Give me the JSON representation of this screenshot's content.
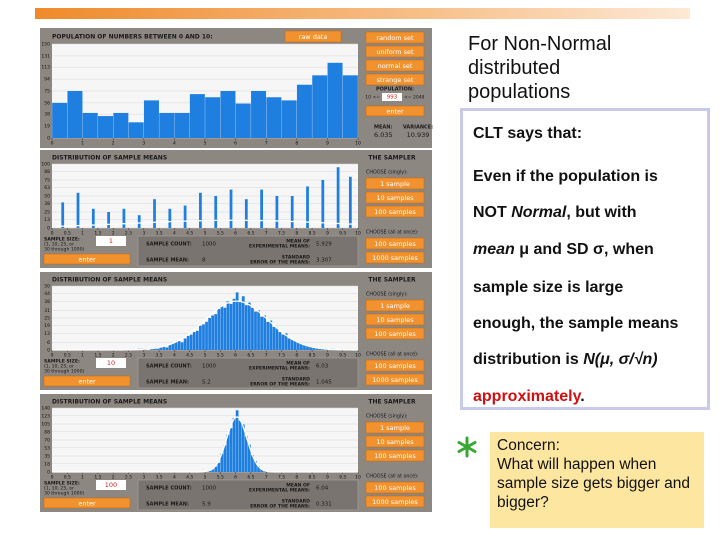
{
  "slide": {
    "title": "For Non-Normal distributed populations",
    "clt": {
      "lines": [
        [
          "CLT says that:"
        ],
        [
          "Even if the population is"
        ],
        [
          "NOT ",
          "Normal",
          ", but with"
        ],
        [
          "mean",
          " μ",
          " and SD ",
          "σ",
          ", when"
        ],
        [
          "sample size is large"
        ],
        [
          "enough, the sample means"
        ],
        [
          "distribution is ",
          "N(μ, σ/√n)"
        ],
        [
          "approximately",
          "."
        ]
      ]
    },
    "concern": {
      "heading": "Concern:",
      "text": "What will happen when sample size gets bigger and bigger?"
    }
  },
  "applet": {
    "population": {
      "title": "POPULATION OF NUMBERS BETWEEN 0 AND 10:",
      "raw_button": "raw data",
      "set_buttons": [
        "random set",
        "uniform set",
        "normal set",
        "strange set"
      ],
      "population_label": "POPULATION:",
      "range_low": "10 <=",
      "population": 993,
      "range_high": "<= 2048",
      "enter": "enter",
      "mean_label": "MEAN:",
      "mean": 6.035,
      "variance_label": "VARIANCE:",
      "variance": 10.939,
      "ylim": [
        0,
        150
      ],
      "yticks": [
        0,
        19,
        38,
        56,
        75,
        94,
        113,
        131,
        150
      ],
      "xlim": [
        0,
        10
      ],
      "xticks": [
        0,
        1,
        2,
        3,
        4,
        5,
        6,
        7,
        8,
        9,
        10
      ],
      "values": [
        56,
        75,
        40,
        35,
        40,
        25,
        60,
        40,
        40,
        70,
        65,
        75,
        55,
        75,
        65,
        60,
        85,
        100,
        120,
        100
      ]
    },
    "panels": [
      {
        "title": "DISTRIBUTION OF SAMPLE MEANS",
        "sampler": "THE SAMPLER",
        "choose_singly": "CHOOSE (singly):",
        "single_buttons": [
          "1 sample",
          "10 samples",
          "100 samples"
        ],
        "choose_all": "CHOOSE (all at once):",
        "all_buttons": [
          "100 samples",
          "1000 samples"
        ],
        "size_label": [
          "SAMPLE SIZE:",
          "(1, 10, 25, or",
          "30 through 1000)"
        ],
        "sample_size": 1,
        "enter": "enter",
        "count_label": "SAMPLE COUNT:",
        "sample_count": 1000,
        "mom_label": [
          "MEAN OF",
          "EXPERIMENTAL MEANS:"
        ],
        "mean_of_means": 5.929,
        "sm_label": "SAMPLE MEAN:",
        "sample_mean": 8,
        "se_label": [
          "STANDARD",
          "ERROR OF THE MEANS:"
        ],
        "standard_error": 3.307,
        "ylim": [
          0,
          100
        ],
        "yticks": [
          0,
          13,
          25,
          38,
          50,
          63,
          75,
          88,
          100
        ],
        "xlim": [
          0,
          10
        ],
        "xticks": [
          0,
          0.5,
          1,
          1.5,
          2,
          2.5,
          3,
          3.5,
          4,
          4.5,
          5,
          5.5,
          6,
          6.5,
          7,
          7.5,
          8,
          8.5,
          9,
          9.5,
          10
        ],
        "values": [
          0,
          0,
          0,
          40,
          0,
          0,
          0,
          0,
          55,
          0,
          0,
          0,
          0,
          30,
          0,
          0,
          0,
          0,
          25,
          0,
          0,
          0,
          0,
          30,
          0,
          0,
          0,
          0,
          20,
          0,
          0,
          0,
          0,
          45,
          0,
          0,
          0,
          0,
          30,
          0,
          0,
          0,
          0,
          35,
          0,
          0,
          0,
          0,
          55,
          0,
          0,
          0,
          0,
          50,
          0,
          0,
          0,
          0,
          60,
          0,
          0,
          0,
          0,
          45,
          0,
          0,
          0,
          0,
          60,
          0,
          0,
          0,
          0,
          50,
          0,
          0,
          0,
          0,
          50,
          0,
          0,
          0,
          0,
          65,
          0,
          0,
          0,
          0,
          75,
          0,
          0,
          0,
          0,
          95,
          0,
          0,
          0,
          80,
          0,
          0
        ]
      },
      {
        "title": "DISTRIBUTION OF SAMPLE MEANS",
        "sampler": "THE SAMPLER",
        "choose_singly": "CHOOSE (singly):",
        "single_buttons": [
          "1 sample",
          "10 samples",
          "100 samples"
        ],
        "choose_all": "CHOOSE (all at once):",
        "all_buttons": [
          "100 samples",
          "1000 samples"
        ],
        "size_label": [
          "SAMPLE SIZE:",
          "(1, 10, 25, or",
          "30 through 1000)"
        ],
        "sample_size": 10,
        "enter": "enter",
        "count_label": "SAMPLE COUNT:",
        "sample_count": 1000,
        "mom_label": [
          "MEAN OF",
          "EXPERIMENTAL MEANS:"
        ],
        "mean_of_means": 6.03,
        "sm_label": "SAMPLE MEAN:",
        "sample_mean": 5.2,
        "se_label": [
          "STANDARD",
          "ERROR OF THE MEANS:"
        ],
        "standard_error": 1.045,
        "ylim": [
          0,
          50
        ],
        "yticks": [
          0,
          6,
          13,
          19,
          25,
          31,
          38,
          44,
          50
        ],
        "xlim": [
          0,
          10
        ],
        "xticks": [
          0,
          0.5,
          1,
          1.5,
          2,
          2.5,
          3,
          3.5,
          4,
          4.5,
          5,
          5.5,
          6,
          6.5,
          7,
          7.5,
          8,
          8.5,
          9,
          9.5,
          10
        ],
        "values": [
          0,
          0,
          0,
          0,
          0,
          0,
          0,
          0,
          0,
          0,
          0,
          0,
          0,
          0,
          0,
          0,
          0,
          0,
          0,
          0,
          0,
          0,
          0,
          0,
          0,
          0,
          0,
          0,
          1,
          1,
          1,
          0,
          1,
          2,
          1,
          2,
          3,
          2,
          4,
          5,
          6,
          7,
          6,
          9,
          11,
          12,
          14,
          15,
          19,
          20,
          22,
          25,
          27,
          28,
          32,
          34,
          33,
          38,
          36,
          40,
          45,
          38,
          42,
          35,
          37,
          33,
          30,
          31,
          26,
          27,
          22,
          23,
          18,
          17,
          14,
          12,
          13,
          9,
          8,
          7,
          6,
          5,
          4,
          3,
          3,
          2,
          2,
          1,
          1,
          1,
          0,
          1,
          0,
          0,
          0,
          0,
          0,
          0,
          0,
          0
        ]
      },
      {
        "title": "DISTRIBUTION OF SAMPLE MEANS",
        "sampler": "THE SAMPLER",
        "choose_singly": "CHOOSE (singly):",
        "single_buttons": [
          "1 sample",
          "10 samples",
          "100 samples"
        ],
        "choose_all": "CHOOSE (all at once):",
        "all_buttons": [
          "100 samples",
          "1000 samples"
        ],
        "size_label": [
          "SAMPLE SIZE:",
          "(1, 10, 25, or",
          "30 through 1000)"
        ],
        "sample_size": 100,
        "enter": "enter",
        "count_label": "SAMPLE COUNT:",
        "sample_count": 1000,
        "mom_label": [
          "MEAN OF",
          "EXPERIMENTAL MEANS:"
        ],
        "mean_of_means": 6.04,
        "sm_label": "SAMPLE MEAN:",
        "sample_mean": 5.9,
        "se_label": [
          "STANDARD",
          "ERROR OF THE MEANS:"
        ],
        "standard_error": 0.331,
        "ylim": [
          0,
          140
        ],
        "yticks": [
          0,
          18,
          35,
          53,
          70,
          88,
          105,
          123,
          140
        ],
        "xlim": [
          0,
          10
        ],
        "xticks": [
          0,
          0.5,
          1,
          1.5,
          2,
          2.5,
          3,
          3.5,
          4,
          4.5,
          5,
          5.5,
          6,
          6.5,
          7,
          7.5,
          8,
          8.5,
          9,
          9.5,
          10
        ],
        "values": [
          0,
          0,
          0,
          0,
          0,
          0,
          0,
          0,
          0,
          0,
          0,
          0,
          0,
          0,
          0,
          0,
          0,
          0,
          0,
          0,
          0,
          0,
          0,
          0,
          0,
          0,
          0,
          0,
          0,
          0,
          0,
          0,
          0,
          0,
          0,
          0,
          0,
          0,
          0,
          0,
          0,
          0,
          0,
          0,
          0,
          0,
          0,
          0,
          0,
          1,
          2,
          3,
          6,
          12,
          20,
          40,
          58,
          82,
          96,
          118,
          135,
          112,
          104,
          78,
          60,
          37,
          24,
          13,
          6,
          3,
          2,
          1,
          0,
          0,
          0,
          0,
          0,
          0,
          0,
          0,
          0,
          0,
          0,
          0,
          0,
          0,
          0,
          0,
          0,
          0,
          0,
          0,
          0,
          0,
          0,
          0,
          0,
          0,
          0,
          0
        ]
      }
    ]
  }
}
